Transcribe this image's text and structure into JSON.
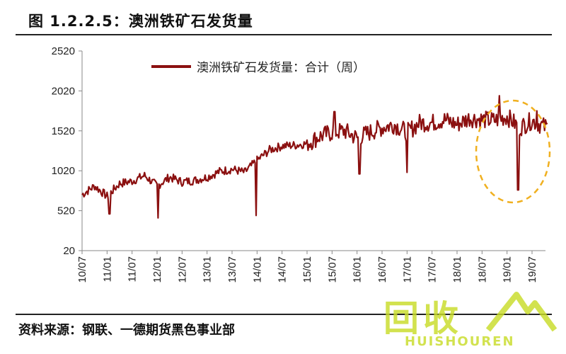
{
  "figure_title": "图 1.2.2.5：澳洲铁矿石发货量",
  "source": "资料来源：钢联、一德期货黑色事业部",
  "watermark": {
    "main": "回收",
    "sub": "HUISHOUREN"
  },
  "colors": {
    "series": "#8b1010",
    "highlight": "#f0b020",
    "text": "#222222"
  },
  "chart_data": {
    "type": "line",
    "title": "",
    "xlabel": "",
    "ylabel": "",
    "ylim": [
      20,
      2520
    ],
    "yticks": [
      20,
      520,
      1020,
      1520,
      2020,
      2520
    ],
    "xticks": [
      "10/07",
      "11/01",
      "11/07",
      "12/01",
      "12/07",
      "13/01",
      "13/07",
      "14/01",
      "14/07",
      "15/01",
      "15/07",
      "16/01",
      "16/07",
      "17/01",
      "17/07",
      "18/01",
      "18/07",
      "19/01",
      "19/07"
    ],
    "grid": false,
    "legend_position": "top-left",
    "annotation": "dashed circle highlighting 2018/07–2019/10 segment",
    "series": [
      {
        "name": "澳洲铁矿石发货量：合计（周）",
        "x": [
          "10/07",
          "10/10",
          "11/01",
          "11/04",
          "11/07",
          "11/10",
          "12/01",
          "12/04",
          "12/07",
          "12/10",
          "13/01",
          "13/04",
          "13/07",
          "13/10",
          "14/01",
          "14/04",
          "14/07",
          "14/10",
          "15/01",
          "15/04",
          "15/07",
          "15/10",
          "16/01",
          "16/04",
          "16/07",
          "16/10",
          "17/01",
          "17/04",
          "17/07",
          "17/10",
          "18/01",
          "18/04",
          "18/07",
          "18/10",
          "19/01",
          "19/04",
          "19/07",
          "19/10"
        ],
        "values": [
          720,
          830,
          700,
          860,
          890,
          960,
          830,
          940,
          880,
          900,
          940,
          1010,
          1040,
          1000,
          1150,
          1280,
          1330,
          1340,
          1360,
          1450,
          1500,
          1520,
          1430,
          1500,
          1560,
          1600,
          1500,
          1620,
          1620,
          1660,
          1600,
          1680,
          1660,
          1650,
          1700,
          1560,
          1650,
          1570
        ]
      }
    ]
  }
}
